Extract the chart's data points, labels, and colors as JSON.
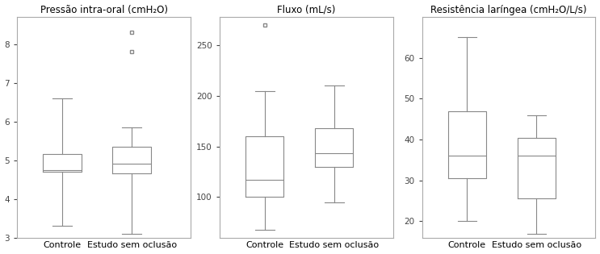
{
  "plots": [
    {
      "title": "Pressão intra-oral (cmH₂O)",
      "xlabel_controle": "Controle",
      "xlabel_estudo": "Estudo sem oclusão",
      "ylim": [
        3,
        8.7
      ],
      "yticks": [
        3,
        4,
        5,
        6,
        7,
        8
      ],
      "controle": {
        "whislo": 3.3,
        "q1": 4.7,
        "med": 4.75,
        "q3": 5.15,
        "whishi": 6.6,
        "fliers": []
      },
      "estudo": {
        "whislo": 3.1,
        "q1": 4.65,
        "med": 4.9,
        "q3": 5.35,
        "whishi": 5.85,
        "fliers": [
          7.8,
          8.3
        ]
      }
    },
    {
      "title": "Fluxo (mL/s)",
      "xlabel_controle": "Controle",
      "xlabel_estudo": "Estudo sem oclusão",
      "ylim": [
        60,
        278
      ],
      "yticks": [
        100,
        150,
        200,
        250
      ],
      "controle": {
        "whislo": 68,
        "q1": 100,
        "med": 117,
        "q3": 160,
        "whishi": 205,
        "fliers": [
          270
        ]
      },
      "estudo": {
        "whislo": 95,
        "q1": 130,
        "med": 143,
        "q3": 168,
        "whishi": 210,
        "fliers": []
      }
    },
    {
      "title": "Resistência laríngea (cmH₂O/L/s)",
      "xlabel_controle": "Controle",
      "xlabel_estudo": "Estudo sem oclusão",
      "ylim": [
        16,
        70
      ],
      "yticks": [
        20,
        30,
        40,
        50,
        60
      ],
      "controle": {
        "whislo": 20,
        "q1": 30.5,
        "med": 36,
        "q3": 47,
        "whishi": 65,
        "fliers": []
      },
      "estudo": {
        "whislo": 17,
        "q1": 25.5,
        "med": 36,
        "q3": 40.5,
        "whishi": 46,
        "fliers": []
      }
    }
  ],
  "box_color": "#888888",
  "background_color": "#ffffff",
  "title_fontsize": 8.5,
  "tick_fontsize": 7.5,
  "xlabel_fontsize": 8
}
